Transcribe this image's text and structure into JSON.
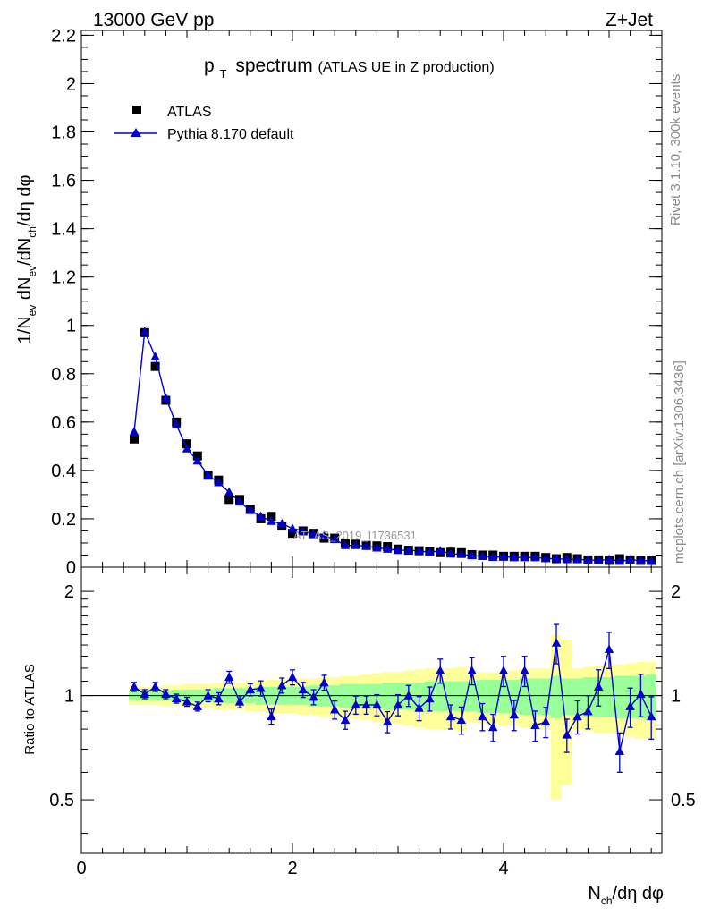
{
  "header": {
    "left": "13000 GeV pp",
    "right": "Z+Jet"
  },
  "side_labels": {
    "rivet": "Rivet 3.1.10,  300k events",
    "mcplots": "mcplots.cern.ch [arXiv:1306.3436]"
  },
  "chart_data": [
    {
      "type": "scatter",
      "title_main": "p",
      "title_sub": "T",
      "title_word": "spectrum",
      "title_paren": "(ATLAS UE in Z production)",
      "watermark": "ATLAS_2019_I1736531",
      "ylabel": "1/N_ev dN_ev/dN_ch/dη dφ",
      "xlim": [
        0,
        5.5
      ],
      "ylim": [
        0,
        2.22
      ],
      "yticks": [
        0,
        0.2,
        0.4,
        0.6,
        0.8,
        1,
        1.2,
        1.4,
        1.6,
        1.8,
        2,
        2.2
      ],
      "ytick_labels": [
        "0",
        "0.2",
        "0.4",
        "0.6",
        "0.8",
        "1",
        "1.2",
        "1.4",
        "1.6",
        "1.8",
        "2",
        "2.2"
      ],
      "legend": [
        {
          "name": "ATLAS",
          "marker": "square",
          "color": "#000000"
        },
        {
          "name": "Pythia 8.170 default",
          "marker": "triangle",
          "color": "#0000cc"
        }
      ],
      "x": [
        0.5,
        0.6,
        0.7,
        0.8,
        0.9,
        1.0,
        1.1,
        1.2,
        1.3,
        1.4,
        1.5,
        1.6,
        1.7,
        1.8,
        1.9,
        2.0,
        2.1,
        2.2,
        2.3,
        2.4,
        2.5,
        2.6,
        2.7,
        2.8,
        2.9,
        3.0,
        3.1,
        3.2,
        3.3,
        3.4,
        3.5,
        3.6,
        3.7,
        3.8,
        3.9,
        4.0,
        4.1,
        4.2,
        4.3,
        4.4,
        4.5,
        4.6,
        4.7,
        4.8,
        4.9,
        5.0,
        5.1,
        5.2,
        5.3,
        5.4
      ],
      "series": [
        {
          "name": "ATLAS",
          "values": [
            0.53,
            0.97,
            0.83,
            0.69,
            0.6,
            0.51,
            0.46,
            0.38,
            0.36,
            0.28,
            0.28,
            0.24,
            0.2,
            0.21,
            0.17,
            0.14,
            0.15,
            0.14,
            0.12,
            0.12,
            0.1,
            0.095,
            0.09,
            0.088,
            0.085,
            0.075,
            0.07,
            0.068,
            0.065,
            0.06,
            0.062,
            0.06,
            0.052,
            0.05,
            0.05,
            0.045,
            0.045,
            0.045,
            0.045,
            0.04,
            0.035,
            0.04,
            0.035,
            0.03,
            0.03,
            0.028,
            0.035,
            0.03,
            0.028,
            0.028
          ]
        },
        {
          "name": "Pythia 8.170 default",
          "values": [
            0.56,
            0.975,
            0.87,
            0.7,
            0.59,
            0.49,
            0.44,
            0.38,
            0.35,
            0.31,
            0.27,
            0.235,
            0.21,
            0.19,
            0.18,
            0.16,
            0.15,
            0.135,
            0.13,
            0.115,
            0.09,
            0.09,
            0.087,
            0.08,
            0.075,
            0.07,
            0.07,
            0.067,
            0.062,
            0.068,
            0.055,
            0.053,
            0.048,
            0.045,
            0.041,
            0.043,
            0.04,
            0.04,
            0.04,
            0.036,
            0.035,
            0.032,
            0.032,
            0.03,
            0.028,
            0.032,
            0.025,
            0.03,
            0.028,
            0.025
          ]
        }
      ]
    },
    {
      "type": "scatter",
      "ylabel": "Ratio to ATLAS",
      "xlabel": "N_ch/dη dφ",
      "xlim": [
        0,
        5.5
      ],
      "ylim": [
        0.35,
        2.35
      ],
      "yscale": "log",
      "yticks": [
        0.5,
        1,
        2
      ],
      "ytick_labels": [
        "0.5",
        "1",
        "2"
      ],
      "xticks": [
        0,
        2,
        4
      ],
      "xtick_labels": [
        "0",
        "2",
        "4"
      ],
      "x": [
        0.5,
        0.6,
        0.7,
        0.8,
        0.9,
        1.0,
        1.1,
        1.2,
        1.3,
        1.4,
        1.5,
        1.6,
        1.7,
        1.8,
        1.9,
        2.0,
        2.1,
        2.2,
        2.3,
        2.4,
        2.5,
        2.6,
        2.7,
        2.8,
        2.9,
        3.0,
        3.1,
        3.2,
        3.3,
        3.4,
        3.5,
        3.6,
        3.7,
        3.8,
        3.9,
        4.0,
        4.1,
        4.2,
        4.3,
        4.4,
        4.5,
        4.6,
        4.7,
        4.8,
        4.9,
        5.0,
        5.1,
        5.2,
        5.3,
        5.4
      ],
      "series": [
        {
          "name": "Pythia 8.170 default / ATLAS",
          "values": [
            1.06,
            1.01,
            1.06,
            1.01,
            0.98,
            0.96,
            0.93,
            1.0,
            0.98,
            1.13,
            0.96,
            1.04,
            1.05,
            0.87,
            1.07,
            1.13,
            1.04,
            0.99,
            1.09,
            0.91,
            0.85,
            0.94,
            0.94,
            0.94,
            0.84,
            0.94,
            1.0,
            0.92,
            0.98,
            1.18,
            0.87,
            0.85,
            1.18,
            0.87,
            0.81,
            1.18,
            0.88,
            1.18,
            0.82,
            0.84,
            1.42,
            0.77,
            0.87,
            0.9,
            1.06,
            1.36,
            0.69,
            0.93,
            1.01,
            0.87
          ]
        },
        {
          "name": "ratio uncertainty",
          "values": [
            0.03,
            0.03,
            0.03,
            0.03,
            0.03,
            0.03,
            0.03,
            0.04,
            0.04,
            0.04,
            0.04,
            0.04,
            0.05,
            0.05,
            0.05,
            0.05,
            0.05,
            0.05,
            0.05,
            0.06,
            0.06,
            0.06,
            0.06,
            0.07,
            0.07,
            0.07,
            0.07,
            0.08,
            0.08,
            0.08,
            0.08,
            0.09,
            0.09,
            0.09,
            0.09,
            0.1,
            0.1,
            0.1,
            0.1,
            0.1,
            0.13,
            0.11,
            0.11,
            0.11,
            0.12,
            0.12,
            0.13,
            0.13,
            0.14,
            0.14
          ]
        },
        {
          "name": "ATLAS stat band",
          "values": [
            0.03,
            0.03,
            0.03,
            0.03,
            0.04,
            0.04,
            0.04,
            0.04,
            0.05,
            0.05,
            0.05,
            0.05,
            0.06,
            0.06,
            0.06,
            0.06,
            0.06,
            0.07,
            0.07,
            0.07,
            0.08,
            0.08,
            0.08,
            0.08,
            0.09,
            0.09,
            0.09,
            0.09,
            0.1,
            0.1,
            0.1,
            0.1,
            0.1,
            0.11,
            0.11,
            0.11,
            0.11,
            0.12,
            0.12,
            0.12,
            0.14,
            0.12,
            0.12,
            0.13,
            0.13,
            0.13,
            0.14,
            0.14,
            0.14,
            0.15
          ]
        },
        {
          "name": "ATLAS total band",
          "values": [
            0.06,
            0.06,
            0.06,
            0.07,
            0.07,
            0.08,
            0.08,
            0.08,
            0.09,
            0.09,
            0.09,
            0.1,
            0.1,
            0.11,
            0.11,
            0.11,
            0.12,
            0.12,
            0.13,
            0.13,
            0.14,
            0.14,
            0.15,
            0.16,
            0.17,
            0.17,
            0.18,
            0.19,
            0.2,
            0.2,
            0.2,
            0.21,
            0.16,
            0.17,
            0.17,
            0.18,
            0.18,
            0.19,
            0.2,
            0.2,
            0.5,
            0.45,
            0.2,
            0.21,
            0.22,
            0.22,
            0.23,
            0.24,
            0.25,
            0.25
          ]
        }
      ]
    }
  ]
}
